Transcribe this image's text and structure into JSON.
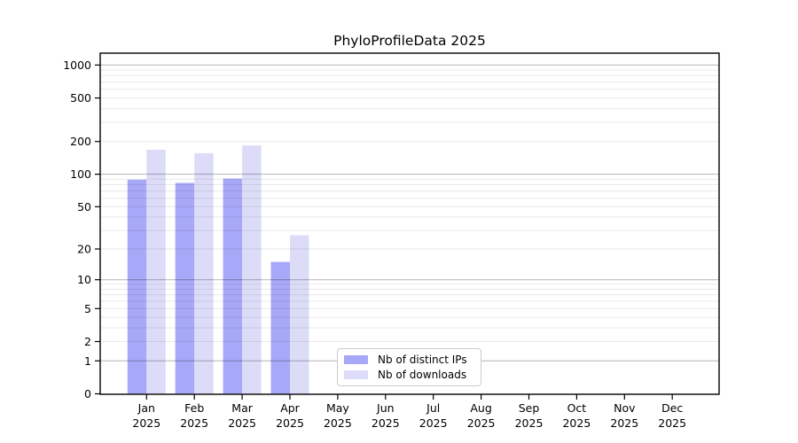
{
  "chart_data": {
    "type": "bar",
    "title": "PhyloProfileData 2025",
    "categories": [
      "Jan 2025",
      "Feb 2025",
      "Mar 2025",
      "Apr 2025",
      "May 2025",
      "Jun 2025",
      "Jul 2025",
      "Aug 2025",
      "Sep 2025",
      "Oct 2025",
      "Nov 2025",
      "Dec 2025"
    ],
    "series": [
      {
        "name": "Nb of distinct IPs",
        "color": "#a8a8f8",
        "values": [
          89,
          83,
          91,
          15,
          0,
          0,
          0,
          0,
          0,
          0,
          0,
          0
        ]
      },
      {
        "name": "Nb of downloads",
        "color": "#dcdcf9",
        "values": [
          168,
          156,
          184,
          27,
          0,
          0,
          0,
          0,
          0,
          0,
          0,
          0
        ]
      }
    ],
    "yscale": "log1p",
    "yticks": [
      0,
      1,
      2,
      5,
      10,
      20,
      50,
      100,
      200,
      500,
      1000
    ],
    "ylim": [
      0,
      1300
    ],
    "grid": "major lines at 1,10,100,1000; faint minor lines at 2-9 per decade",
    "legend_position": "inside bottom-center"
  }
}
